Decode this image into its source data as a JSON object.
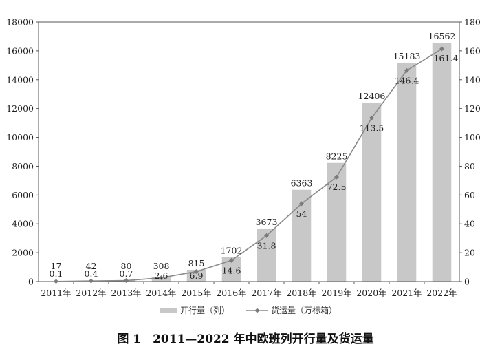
{
  "caption": "图 1　2011—2022 年中欧班列开行量及货运量",
  "chart_data": {
    "type": "bar",
    "categories": [
      "2011年",
      "2012年",
      "2013年",
      "2014年",
      "2015年",
      "2016年",
      "2017年",
      "2018年",
      "2019年",
      "2020年",
      "2021年",
      "2022年"
    ],
    "series": [
      {
        "name": "开行量（列）",
        "type": "bar",
        "axis": "left",
        "values": [
          17,
          42,
          80,
          308,
          815,
          1702,
          3673,
          6363,
          8225,
          12406,
          15183,
          16562
        ],
        "color": "#c8c8c8"
      },
      {
        "name": "货运量（万标箱）",
        "type": "line",
        "axis": "right",
        "values": [
          0.1,
          0.4,
          0.7,
          2.6,
          6.9,
          14.6,
          31.8,
          54,
          72.5,
          113.5,
          146.4,
          161.4
        ],
        "color": "#8a8a8a"
      }
    ],
    "ylim": [
      0,
      18000
    ],
    "y_ticks": [
      0,
      2000,
      4000,
      6000,
      8000,
      10000,
      12000,
      14000,
      16000,
      18000
    ],
    "y2lim": [
      0,
      180
    ],
    "y2_ticks": [
      0,
      20,
      40,
      60,
      80,
      100,
      120,
      140,
      160,
      180
    ],
    "grid": false,
    "legend_placement": "bottom-center"
  }
}
